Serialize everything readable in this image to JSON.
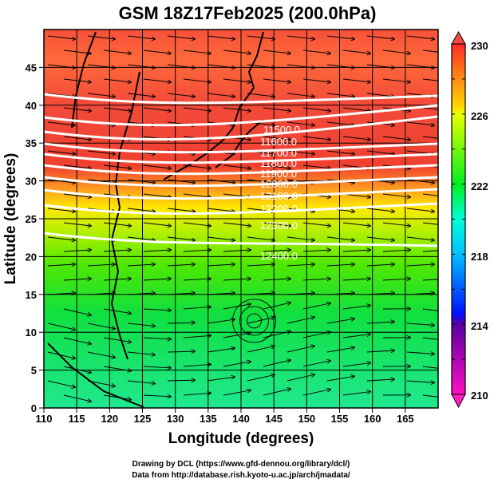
{
  "title": "GSM 18Z17Feb2025 (200.0hPa)",
  "xlabel": "Longitude (degrees)",
  "ylabel": "Latitude  (degrees)",
  "x_ticks": [
    "110",
    "115",
    "120",
    "125",
    "130",
    "135",
    "140",
    "145",
    "150",
    "155",
    "160",
    "165"
  ],
  "y_ticks": [
    "0",
    "5",
    "10",
    "15",
    "20",
    "25",
    "30",
    "35",
    "40",
    "45"
  ],
  "colorbar": {
    "labels": [
      "230",
      "226",
      "222",
      "218",
      "214",
      "210"
    ],
    "range": [
      210,
      230
    ],
    "colors": [
      "#ff00cc",
      "#7a00b0",
      "#0000ff",
      "#00aaff",
      "#00ffe0",
      "#00ee20",
      "#ccff00",
      "#ffee00",
      "#ff9900",
      "#ff2a2a"
    ]
  },
  "contour_labels": [
    "11500.0",
    "11600.0",
    "11700.0",
    "11800.0",
    "11900.0",
    "12000.0",
    "12100.0",
    "12200.0",
    "12300.0",
    "12400.0"
  ],
  "footer": {
    "line1": "Drawing by DCL (https://www.gfd-dennou.org/library/dcl/)",
    "line2": "Data from http://database.rish.kyoto-u.ac.jp/arch/jmadata/"
  },
  "chart_data": {
    "type": "heatmap",
    "title": "GSM 18Z17Feb2025 (200.0hPa)",
    "xlabel": "Longitude (degrees)",
    "ylabel": "Latitude  (degrees)",
    "xlim": [
      110,
      170
    ],
    "ylim": [
      0,
      50
    ],
    "color_range": [
      210,
      230
    ],
    "contour_levels": [
      11500,
      11600,
      11700,
      11800,
      11900,
      12000,
      12100,
      12200,
      12300,
      12400
    ],
    "overlay": "streamlines",
    "grid": true
  }
}
